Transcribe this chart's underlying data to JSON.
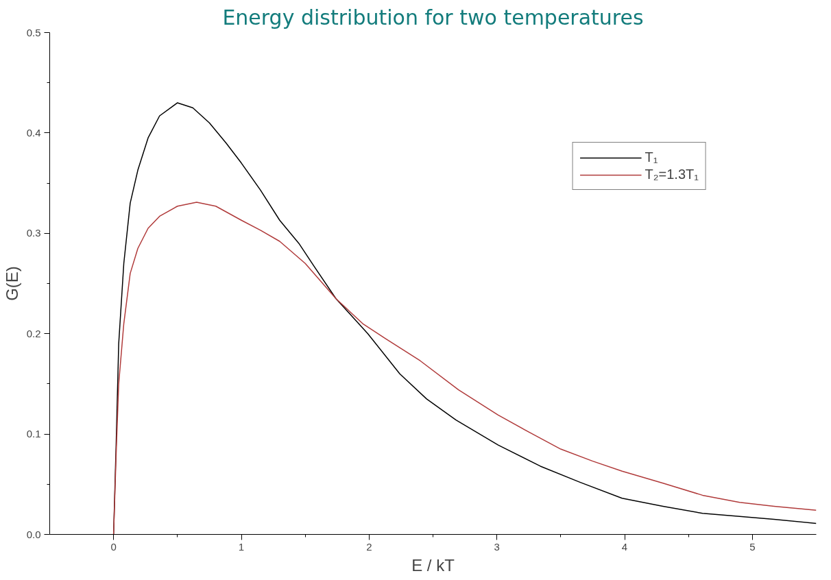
{
  "chart_data": {
    "type": "line",
    "title": "Energy distribution for two temperatures",
    "xlabel": "E / kT",
    "ylabel": "G(E)",
    "xlim": [
      -0.5,
      5.5
    ],
    "ylim": [
      0,
      0.5
    ],
    "xticks": [
      0,
      1,
      2,
      3,
      4,
      5
    ],
    "yticks": [
      {
        "value": 0,
        "label": "0.0"
      },
      {
        "value": 0.1,
        "label": "0.1"
      },
      {
        "value": 0.2,
        "label": "0.2"
      },
      {
        "value": 0.3,
        "label": "0.3"
      },
      {
        "value": 0.4,
        "label": "0.4"
      },
      {
        "value": 0.5,
        "label": "0.5"
      }
    ],
    "grid": false,
    "legend": "top right",
    "marker": "none",
    "line_style": "solid",
    "series": [
      {
        "name": "T₁",
        "color": "#000000",
        "x": [
          0,
          0.02,
          0.04,
          0.08,
          0.13,
          0.19,
          0.27,
          0.36,
          0.5,
          0.62,
          0.75,
          0.88,
          1.0,
          1.15,
          1.3,
          1.45,
          1.57,
          1.74,
          1.99,
          2.24,
          2.45,
          2.68,
          3.01,
          3.34,
          3.65,
          3.98,
          4.3,
          4.61,
          4.9,
          5.17,
          5.5
        ],
        "values": [
          0,
          0.09,
          0.19,
          0.27,
          0.33,
          0.363,
          0.395,
          0.417,
          0.43,
          0.425,
          0.41,
          0.39,
          0.37,
          0.343,
          0.313,
          0.29,
          0.267,
          0.235,
          0.2,
          0.16,
          0.135,
          0.114,
          0.089,
          0.068,
          0.052,
          0.036,
          0.028,
          0.021,
          0.018,
          0.015,
          0.011
        ]
      },
      {
        "name": "T₂=1.3T₁",
        "color": "#b03a3a",
        "x": [
          0,
          0.02,
          0.04,
          0.08,
          0.13,
          0.19,
          0.27,
          0.36,
          0.5,
          0.65,
          0.8,
          1.0,
          1.15,
          1.3,
          1.5,
          1.74,
          1.95,
          2.13,
          2.4,
          2.7,
          3.01,
          3.25,
          3.5,
          3.75,
          3.98,
          4.3,
          4.61,
          4.9,
          5.17,
          5.5
        ],
        "values": [
          0,
          0.08,
          0.15,
          0.21,
          0.26,
          0.285,
          0.305,
          0.317,
          0.327,
          0.331,
          0.327,
          0.313,
          0.303,
          0.292,
          0.27,
          0.235,
          0.21,
          0.195,
          0.173,
          0.144,
          0.119,
          0.102,
          0.085,
          0.073,
          0.063,
          0.051,
          0.039,
          0.032,
          0.028,
          0.024
        ]
      }
    ]
  }
}
